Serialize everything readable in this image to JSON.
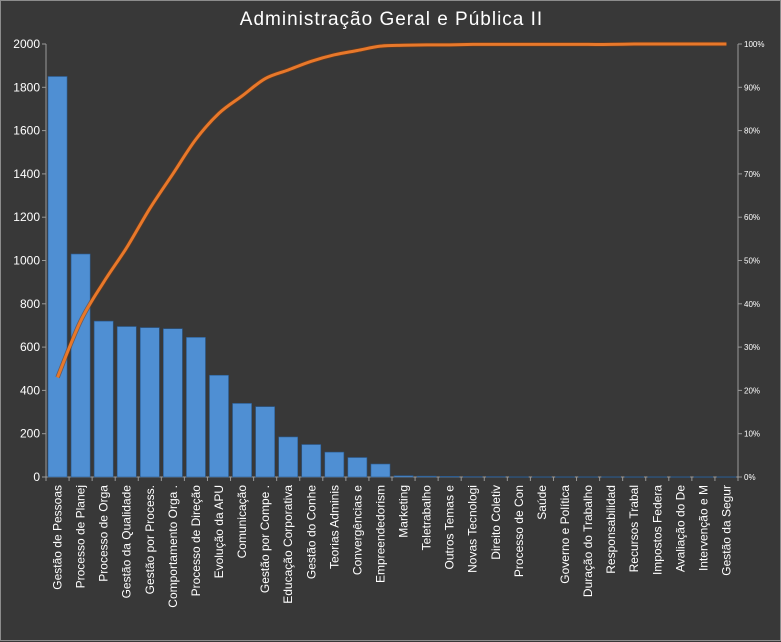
{
  "chart_data": {
    "type": "bar",
    "title": "Administração Geral e Pública II",
    "xlabel": "",
    "ylabel": "",
    "ylim": [
      0,
      2000
    ],
    "y2lim": [
      0,
      1
    ],
    "y_ticks": [
      "0",
      "200",
      "400",
      "600",
      "800",
      "1000",
      "1200",
      "1400",
      "1600",
      "1800",
      "2000"
    ],
    "y2_ticks": [
      "0%",
      "10%",
      "20%",
      "30%",
      "40%",
      "50%",
      "60%",
      "70%",
      "80%",
      "90%",
      "100%"
    ],
    "grid": false,
    "legend": "none",
    "categories": [
      "Gestão de Pessoas",
      "Processo de Planej",
      "Processo de Orga",
      "Gestão da Qualidade",
      "Gestão por Process.",
      "Comportamento Orga .",
      "Processo de Direção",
      "Evolução da APU",
      "Comunicação",
      "Gestão por Compe .",
      "Educação Corporativa",
      "Gestão do Conhe",
      "Teorias Adminis",
      "Convergências e",
      "Empreendedorism",
      "Marketing",
      "Teletrabalho",
      "Outros Temas e",
      "Novas Tecnologi",
      "Direito Coletiv",
      "Processo de Con",
      "Saúde",
      "Governo e Política",
      "Duração do Trabalho",
      "Responsabilidad",
      "Recursos Trabal",
      "Impostos Federa",
      "Avaliação do De",
      "Intervenção e M",
      "Gestão da Segur"
    ],
    "series": [
      {
        "kind": "bar",
        "values": [
          1850,
          1030,
          720,
          695,
          690,
          685,
          645,
          470,
          340,
          325,
          185,
          150,
          115,
          90,
          60,
          6,
          4,
          3,
          2,
          2,
          1,
          1,
          1,
          1,
          1,
          1,
          1,
          1,
          1,
          1
        ]
      },
      {
        "kind": "line",
        "axis": "secondary",
        "values": [
          0.23,
          0.36,
          0.45,
          0.53,
          0.62,
          0.7,
          0.78,
          0.84,
          0.88,
          0.92,
          0.94,
          0.96,
          0.975,
          0.985,
          0.995,
          0.997,
          0.998,
          0.998,
          0.999,
          0.999,
          0.999,
          0.999,
          0.999,
          0.999,
          0.999,
          1.0,
          1.0,
          1.0,
          1.0,
          1.0
        ]
      }
    ],
    "colors": {
      "bar_fill": "#4f8fd3",
      "bar_edge": "#2a5a8f",
      "line": "#e8782a",
      "axis": "#9a9a9a",
      "text": "#ffffff",
      "background": "#383838"
    }
  }
}
